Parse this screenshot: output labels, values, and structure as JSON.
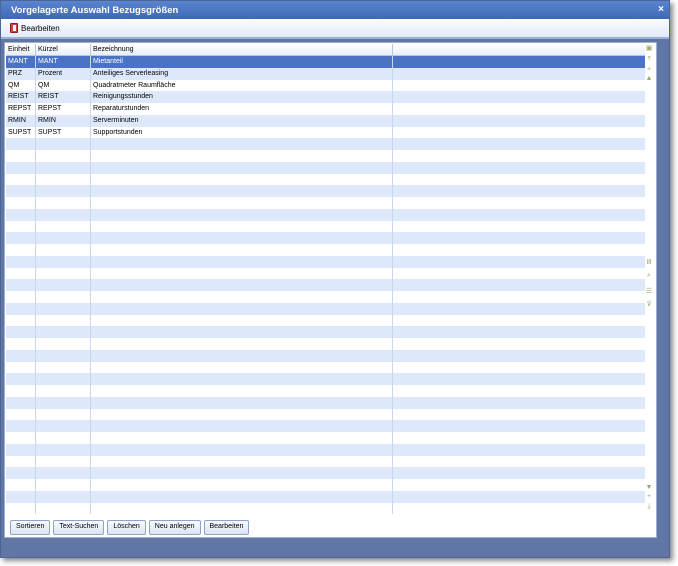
{
  "window": {
    "title": "Vorgelagerte Auswahl Bezugsgrößen",
    "close": "×"
  },
  "toolbar": {
    "edit_label": "Bearbeiten"
  },
  "grid": {
    "columns": [
      "Einheit",
      "Kürzel",
      "Bezeichnung",
      ""
    ],
    "rows": [
      [
        "MANT",
        "MANT",
        "Mietanteil"
      ],
      [
        "PRZ",
        "Prozent",
        "Anteiliges Serverleasing"
      ],
      [
        "QM",
        "QM",
        "Quadratmeter Raumfläche"
      ],
      [
        "REIST",
        "REIST",
        "Reinigungsstunden"
      ],
      [
        "REPST",
        "REPST",
        "Reparaturstunden"
      ],
      [
        "RMIN",
        "RMIN",
        "Serverminuten"
      ],
      [
        "SUPST",
        "SUPST",
        "Supportstunden"
      ]
    ],
    "selected_row": 0
  },
  "buttons": [
    "Sortieren",
    "Text-Suchen",
    "Löschen",
    "Neu anlegen",
    "Bearbeiten"
  ],
  "colors": {
    "title": "#4a72c0",
    "selection": "#4a73c3",
    "alt_row": "#dde9fb",
    "frame": "#6077a6"
  }
}
